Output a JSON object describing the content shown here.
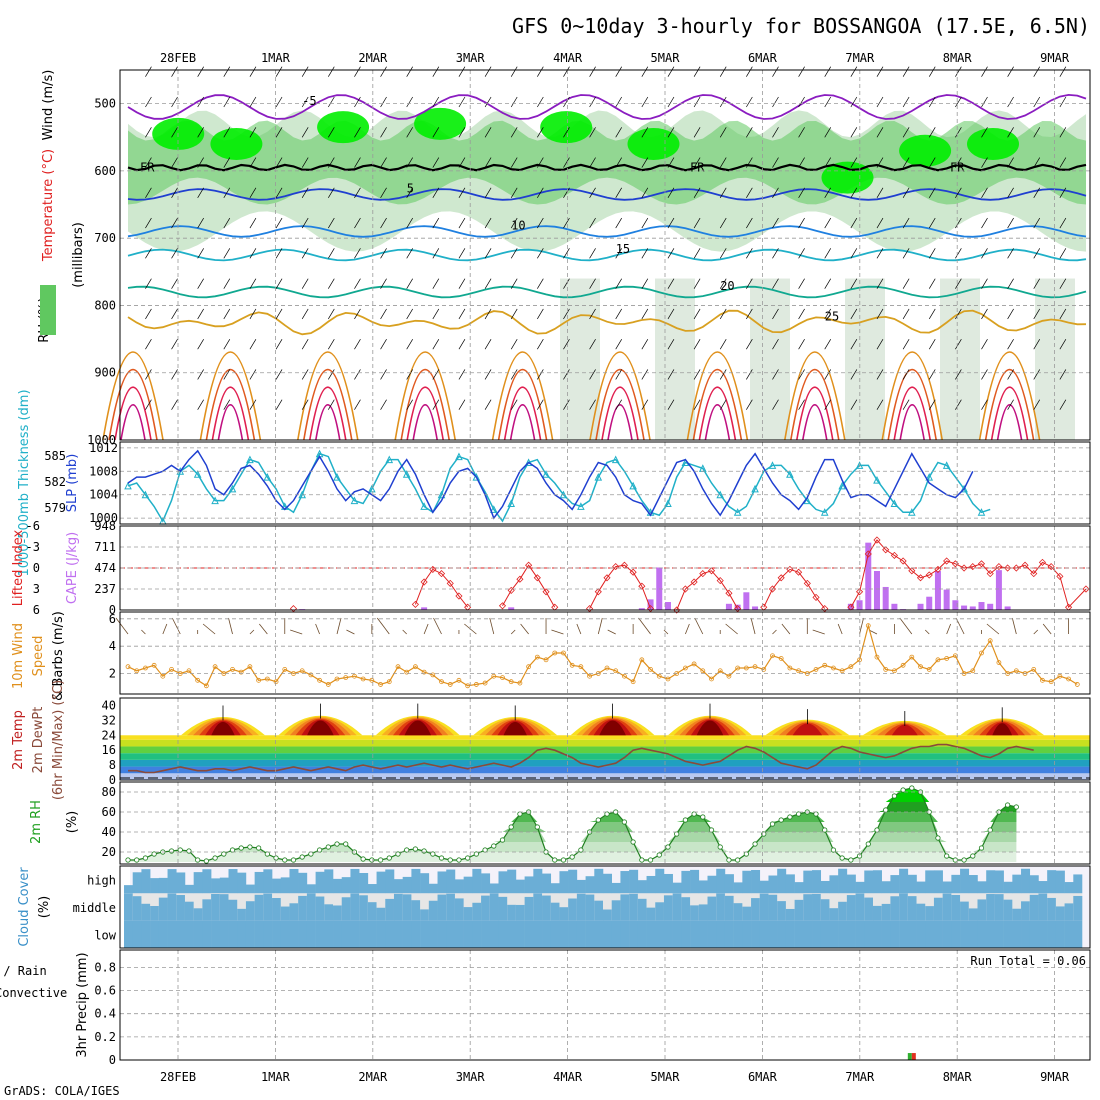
{
  "title": "GFS 0~10day 3-hourly for BOSSANGOA (17.5E, 6.5N)",
  "credit": "GrADS: COLA/IGES",
  "colors": {
    "grid": "#9a9a9a",
    "rh_green": "#00ee00",
    "rh_mid": "#60c860",
    "rh_light": "#cfe8cf",
    "purple": "#8a1cc0",
    "blue": "#1f3fd0",
    "cyan": "#20b0c8",
    "orange": "#e0901c",
    "red": "#e02020",
    "cape": "#c070f0",
    "cloud": "#6baed6",
    "cloud_light": "#e6e6e6",
    "cloud_white": "#f4f2fa"
  },
  "chart_data": [
    {
      "type": "heatmap",
      "name": "upper",
      "ylabel_parts": [
        "RH (%)",
        "Temperature (°C)",
        "Wind (m/s)"
      ],
      "ylabel2": "(millibars)",
      "yticks": [
        500,
        600,
        700,
        800,
        900,
        1000
      ],
      "ylim": [
        1000,
        450
      ],
      "dates": [
        "28FEB",
        "1MAR",
        "2MAR",
        "3MAR",
        "4MAR",
        "5MAR",
        "6MAR",
        "7MAR",
        "8MAR",
        "9MAR"
      ],
      "temperature_contours": [
        {
          "label": "-5",
          "level_mb": 505,
          "color": "#8a1cc0"
        },
        {
          "label": "5",
          "level_mb": 635,
          "color": "#1f3fd0"
        },
        {
          "label": "10",
          "level_mb": 690,
          "color": "#1f80e0"
        },
        {
          "label": "15",
          "level_mb": 725,
          "color": "#20b0c8"
        },
        {
          "label": "20",
          "level_mb": 780,
          "color": "#10a890"
        },
        {
          "label": "25",
          "level_mb": 825,
          "color": "#d8a020"
        }
      ],
      "freezing_label": "FR",
      "freezing_level_mb": 595,
      "rh_labels": [
        "30",
        "50",
        "60",
        "0"
      ]
    },
    {
      "type": "line",
      "name": "slp_thickness",
      "ylabel_left": "1000-500mb Thickness (dm)",
      "ylabel_right": "SLP (mb)",
      "yticks_left": [
        579,
        582,
        585
      ],
      "yticks_right": [
        1000,
        1004,
        1008,
        1012
      ],
      "ylim_slp": [
        999,
        1013
      ],
      "series": [
        {
          "name": "Thickness",
          "color": "#20b0c8",
          "values": [
            1005.5,
            1006,
            1004,
            1002,
            999.5,
            1003,
            1008,
            1009,
            1007.5,
            1005,
            1003,
            1003,
            1005,
            1007.5,
            1010,
            1009.5,
            1007,
            1005,
            1002,
            1001,
            1004,
            1008,
            1011,
            1010.5,
            1007,
            1005,
            1003,
            1002.5,
            1005,
            1008,
            1010,
            1010,
            1007.5,
            1005,
            1002,
            1001,
            1004,
            1008.5,
            1010.5,
            1010,
            1007,
            1004.5,
            1001.5,
            999.5,
            1002.5,
            1007,
            1009.5,
            1010,
            1007.5,
            1006,
            1004,
            1002.5,
            1002,
            1003,
            1007,
            1009.5,
            1010,
            1008,
            1005.5,
            1003,
            1001,
            1000.5,
            1002.5,
            1007,
            1009.5,
            1009,
            1008.5,
            1006,
            1004,
            1002,
            1001,
            1002,
            1005,
            1008,
            1009,
            1009,
            1007.5,
            1005,
            1003,
            1001.5,
            1001,
            1002.5,
            1005.5,
            1007.5,
            1009,
            1009,
            1006.5,
            1004.5,
            1002.5,
            1001,
            1001,
            1003,
            1007,
            1009.5,
            1009,
            1007,
            1005,
            1002.5,
            1001,
            1001.5
          ]
        },
        {
          "name": "SLP",
          "color": "#1f3fd0",
          "values": [
            1006,
            1007,
            1007,
            1007.5,
            1008,
            1009,
            1008,
            1010,
            1011.5,
            1009,
            1005,
            1004,
            1006,
            1008.5,
            1009,
            1007.5,
            1005.5,
            1003,
            1001.5,
            1003,
            1005.5,
            1008,
            1010.5,
            1008,
            1005,
            1003,
            1004.5,
            1005,
            1004,
            1003,
            1005,
            1008,
            1010,
            1007.5,
            1004,
            1001,
            1003,
            1006,
            1008,
            1008.5,
            1007,
            1004,
            1000,
            1002,
            1005,
            1008,
            1009.5,
            1008.5,
            1006,
            1004,
            1003,
            1001.5,
            1004,
            1007,
            1009.5,
            1009,
            1007,
            1004,
            1003,
            1002.5,
            1000.5,
            1003.5,
            1006.5,
            1009.5,
            1010,
            1008,
            1005,
            1002.5,
            1000.5,
            1003,
            1006,
            1009,
            1011,
            1008.5,
            1006,
            1004,
            1003,
            1001.5,
            1003.5,
            1007,
            1010,
            1010,
            1006.5,
            1003.5,
            1004,
            1004,
            1003,
            1002,
            1005,
            1008,
            1011,
            1008.5,
            1006,
            1005,
            1004,
            1003.5,
            1005,
            1008
          ]
        }
      ]
    },
    {
      "type": "bar",
      "name": "cape_li",
      "ylabel_left": "Lifted Index",
      "ylabel_right": "CAPE (J/kg)",
      "yticks_left": [
        "-6",
        "-3",
        "0",
        "3",
        "6"
      ],
      "yticks_right": [
        "0",
        "237",
        "474",
        "711",
        "948"
      ],
      "cape_max": 948,
      "li": [
        null,
        null,
        null,
        null,
        null,
        null,
        null,
        null,
        null,
        null,
        null,
        null,
        null,
        null,
        null,
        null,
        null,
        5.6,
        null,
        null,
        null,
        null,
        null,
        null,
        null,
        null,
        null,
        null,
        null,
        null,
        null,
        null,
        null,
        null,
        null,
        null,
        null,
        null,
        null,
        null,
        null,
        null,
        null,
        null,
        null,
        null,
        null,
        null,
        null,
        null,
        null,
        null,
        null,
        null,
        null,
        null,
        null,
        null,
        null,
        null,
        null,
        null,
        null,
        null,
        null,
        null,
        null,
        null,
        null,
        null,
        null,
        null,
        null,
        null,
        null,
        null,
        null,
        null,
        null,
        null,
        null,
        null,
        null,
        null,
        null,
        null,
        null,
        null,
        null,
        null,
        null,
        null,
        null,
        null,
        null,
        null,
        null,
        null,
        null,
        null
      ],
      "li_points": [
        [
          19,
          5.8
        ],
        [
          33,
          5.2
        ],
        [
          34,
          2.0
        ],
        [
          35,
          0.2
        ],
        [
          36,
          0.8
        ],
        [
          37,
          2.2
        ],
        [
          38,
          4.0
        ],
        [
          39,
          5.6
        ],
        [
          43,
          5.4
        ],
        [
          44,
          3.2
        ],
        [
          45,
          1.6
        ],
        [
          46,
          -0.4
        ],
        [
          47,
          1.4
        ],
        [
          48,
          3.4
        ],
        [
          49,
          5.6
        ],
        [
          53,
          5.8
        ],
        [
          54,
          3.4
        ],
        [
          55,
          1.4
        ],
        [
          56,
          -0.2
        ],
        [
          57,
          -0.4
        ],
        [
          58,
          0.6
        ],
        [
          59,
          2.6
        ],
        [
          60,
          5.8
        ],
        [
          63,
          6.0
        ],
        [
          64,
          3.0
        ],
        [
          65,
          2.0
        ],
        [
          66,
          0.8
        ],
        [
          67,
          0.4
        ],
        [
          68,
          1.8
        ],
        [
          69,
          3.6
        ],
        [
          70,
          5.8
        ],
        [
          73,
          5.6
        ],
        [
          74,
          3.0
        ],
        [
          75,
          1.4
        ],
        [
          76,
          0.2
        ],
        [
          77,
          0.6
        ],
        [
          78,
          2.2
        ],
        [
          79,
          4.2
        ],
        [
          80,
          5.8
        ],
        [
          83,
          5.6
        ],
        [
          84,
          3.4
        ],
        [
          85,
          -2.0
        ],
        [
          86,
          -4.0
        ],
        [
          87,
          -2.6
        ],
        [
          88,
          -1.8
        ],
        [
          89,
          -1.0
        ],
        [
          90,
          0.4
        ],
        [
          91,
          1.4
        ],
        [
          92,
          1.0
        ],
        [
          93,
          0.2
        ],
        [
          94,
          -1.0
        ],
        [
          95,
          -0.6
        ],
        [
          96,
          0.0
        ],
        [
          97,
          -0.2
        ],
        [
          98,
          -0.6
        ],
        [
          99,
          0.8
        ],
        [
          100,
          -0.2
        ],
        [
          101,
          0.0
        ],
        [
          102,
          0.0
        ],
        [
          103,
          -0.4
        ],
        [
          104,
          0.8
        ],
        [
          105,
          -0.8
        ],
        [
          106,
          -0.2
        ],
        [
          107,
          1.2
        ],
        [
          108,
          5.6
        ],
        [
          110,
          3.0
        ]
      ],
      "cape_bars": [
        [
          20,
          10
        ],
        [
          34,
          30
        ],
        [
          44,
          30
        ],
        [
          59,
          20
        ],
        [
          60,
          120
        ],
        [
          61,
          480
        ],
        [
          62,
          90
        ],
        [
          69,
          70
        ],
        [
          70,
          60
        ],
        [
          71,
          200
        ],
        [
          72,
          40
        ],
        [
          83,
          70
        ],
        [
          84,
          110
        ],
        [
          85,
          760
        ],
        [
          86,
          440
        ],
        [
          87,
          260
        ],
        [
          88,
          70
        ],
        [
          89,
          10
        ],
        [
          91,
          70
        ],
        [
          92,
          150
        ],
        [
          93,
          440
        ],
        [
          94,
          230
        ],
        [
          95,
          110
        ],
        [
          96,
          50
        ],
        [
          97,
          40
        ],
        [
          98,
          90
        ],
        [
          99,
          70
        ],
        [
          100,
          450
        ],
        [
          101,
          40
        ]
      ]
    },
    {
      "type": "line",
      "name": "wind10m",
      "ylabel": "10m Wind Speed & Barbs (m/s)",
      "yticks": [
        2,
        4,
        6
      ],
      "ylim": [
        0.5,
        6.5
      ],
      "values": [
        2.5,
        2.2,
        2.4,
        2.6,
        1.8,
        2.3,
        2.0,
        2.2,
        1.5,
        1.1,
        2.5,
        2.0,
        2.3,
        2.1,
        2.5,
        1.5,
        1.6,
        1.4,
        2.3,
        2.0,
        2.2,
        1.9,
        1.5,
        1.2,
        1.6,
        1.7,
        1.8,
        1.6,
        1.5,
        1.2,
        1.4,
        2.5,
        2.1,
        2.5,
        2.1,
        1.9,
        1.4,
        1.2,
        1.5,
        1.1,
        1.2,
        1.3,
        1.8,
        1.7,
        1.4,
        1.3,
        2.5,
        3.2,
        3.0,
        3.5,
        3.5,
        2.6,
        2.5,
        1.8,
        2.0,
        2.4,
        2.2,
        1.8,
        1.4,
        3.0,
        2.3,
        1.8,
        1.6,
        2.0,
        2.4,
        2.7,
        2.2,
        1.6,
        2.2,
        1.8,
        2.4,
        2.4,
        2.5,
        2.3,
        3.3,
        3.1,
        2.4,
        2.2,
        2.0,
        2.3,
        2.6,
        2.4,
        2.2,
        2.5,
        3.0,
        5.5,
        3.2,
        2.3,
        2.2,
        2.6,
        3.2,
        2.5,
        2.3,
        3.0,
        3.1,
        3.3,
        2.0,
        2.2,
        3.5,
        4.4,
        2.8,
        2.0,
        2.2,
        2.0,
        2.3,
        1.5,
        1.4,
        1.8,
        1.6,
        1.2
      ]
    },
    {
      "type": "area",
      "name": "temp2m",
      "ylabel": "2m Temp 2m DewPt (6hr Min/Max) (°C)",
      "yticks": [
        0,
        8,
        16,
        24,
        32,
        40
      ],
      "ylim": [
        0,
        44
      ],
      "days_peak": [
        38,
        39,
        39,
        38,
        39,
        39,
        36,
        35,
        37
      ],
      "min_temp": 23,
      "dewpoint": [
        5,
        5,
        4,
        4,
        5,
        6,
        7,
        6,
        5,
        5,
        6,
        6,
        5,
        6,
        7,
        6,
        5,
        5,
        6,
        7,
        6,
        5,
        6,
        7,
        6,
        5,
        7,
        8,
        7,
        6,
        7,
        8,
        7,
        8,
        9,
        8,
        7,
        8,
        7,
        6,
        7,
        8,
        9,
        8,
        7,
        9,
        12,
        16,
        17,
        16,
        14,
        12,
        9,
        8,
        7,
        8,
        9,
        12,
        16,
        17,
        16,
        15,
        14,
        12,
        10,
        9,
        8,
        9,
        10,
        13,
        16,
        18,
        17,
        15,
        12,
        9,
        8,
        7,
        6,
        8,
        12,
        16,
        18,
        17,
        15,
        14,
        13,
        12,
        13,
        15,
        17,
        18,
        18,
        19,
        19,
        18,
        17,
        15,
        13,
        12,
        14,
        17,
        18,
        17,
        16
      ]
    },
    {
      "type": "area",
      "name": "rh2m",
      "ylabel": "2m RH (%)",
      "yticks": [
        20,
        40,
        60,
        80
      ],
      "ylim": [
        8,
        90
      ],
      "values": [
        12,
        12,
        14,
        18,
        20,
        21,
        22,
        21,
        12,
        11,
        14,
        18,
        22,
        24,
        25,
        24,
        18,
        14,
        12,
        12,
        15,
        18,
        22,
        25,
        28,
        28,
        20,
        13,
        12,
        12,
        14,
        18,
        22,
        23,
        21,
        18,
        14,
        12,
        12,
        14,
        18,
        22,
        26,
        32,
        45,
        58,
        60,
        45,
        20,
        12,
        12,
        15,
        22,
        40,
        52,
        58,
        60,
        50,
        30,
        12,
        12,
        17,
        25,
        38,
        52,
        58,
        55,
        42,
        25,
        12,
        12,
        18,
        28,
        38,
        48,
        52,
        55,
        58,
        60,
        58,
        42,
        22,
        14,
        12,
        16,
        28,
        42,
        62,
        76,
        82,
        84,
        80,
        60,
        34,
        16,
        12,
        12,
        16,
        24,
        42,
        60,
        67,
        65
      ]
    },
    {
      "type": "heatmap",
      "name": "cloud",
      "ylabel": "Cloud Cover (%)",
      "row_labels": [
        "high",
        "middle",
        "low"
      ]
    },
    {
      "type": "bar",
      "name": "precip",
      "ylabel_left": "Total / Rain",
      "ylabel_left2": "Convective",
      "ylabel": "3hr Precip (mm)",
      "yticks": [
        "0",
        "0.2",
        "0.4",
        "0.6",
        "0.8"
      ],
      "ylim": [
        0,
        0.95
      ],
      "run_total_label": "Run Total = 0.06",
      "bars": [
        [
          90,
          0.06
        ]
      ]
    }
  ]
}
